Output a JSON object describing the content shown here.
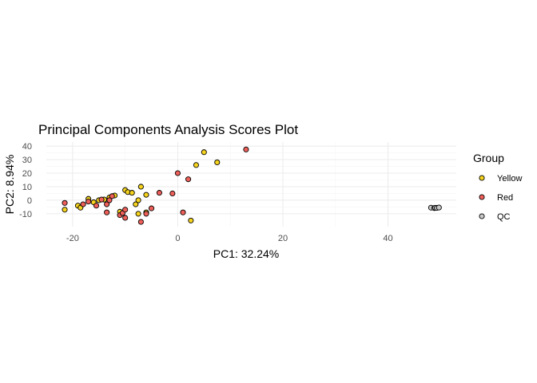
{
  "chart_data": {
    "type": "scatter",
    "title": "Principal Components Analysis Scores Plot",
    "xlabel": "PC1: 32.24%",
    "ylabel": "PC2: 8.94%",
    "xlim": [
      -25,
      53
    ],
    "ylim": [
      -19.5,
      43
    ],
    "xticks": [
      -20,
      0,
      20,
      40
    ],
    "xtick_labels": [
      "-20",
      "0",
      "20",
      "40"
    ],
    "yticks": [
      -10,
      0,
      10,
      20,
      30,
      40
    ],
    "ytick_labels": [
      "-10",
      "0",
      "10",
      "20",
      "30",
      "40"
    ],
    "grid": true,
    "legend": {
      "title": "Group",
      "position": "right"
    },
    "series": [
      {
        "name": "Yellow",
        "color": "#F5D31E",
        "points": [
          [
            -21.5,
            -7
          ],
          [
            -19,
            -4
          ],
          [
            -18.5,
            -5.5
          ],
          [
            -17,
            1
          ],
          [
            -16,
            -1.5
          ],
          [
            -15,
            0
          ],
          [
            -14,
            0.5
          ],
          [
            -13,
            2
          ],
          [
            -12,
            3.5
          ],
          [
            -11,
            -8.5
          ],
          [
            -10,
            7.5
          ],
          [
            -9.5,
            6
          ],
          [
            -8.7,
            5.5
          ],
          [
            -8,
            -3
          ],
          [
            -7.5,
            0
          ],
          [
            -7,
            10
          ],
          [
            -6,
            4
          ],
          [
            -7.5,
            -10
          ],
          [
            -6,
            -9
          ],
          [
            3.5,
            26
          ],
          [
            5,
            35.5
          ],
          [
            7.5,
            28
          ],
          [
            2.5,
            -15
          ]
        ]
      },
      {
        "name": "Red",
        "color": "#F0605A",
        "points": [
          [
            -21.5,
            -2
          ],
          [
            -18,
            -3
          ],
          [
            -17,
            -1
          ],
          [
            -15.5,
            -4
          ],
          [
            -14.5,
            0.5
          ],
          [
            -13.5,
            -3
          ],
          [
            -13,
            0
          ],
          [
            -13.5,
            -9
          ],
          [
            -12.5,
            3
          ],
          [
            -11,
            -11
          ],
          [
            -10.5,
            -9.5
          ],
          [
            -10,
            -13
          ],
          [
            -10,
            -7
          ],
          [
            -7,
            -16
          ],
          [
            -6,
            -10
          ],
          [
            -5,
            -6
          ],
          [
            -3.5,
            5.5
          ],
          [
            -1,
            5
          ],
          [
            0,
            20
          ],
          [
            2,
            15.5
          ],
          [
            1,
            -9
          ],
          [
            13,
            37.5
          ]
        ]
      },
      {
        "name": "QC",
        "color": "#C8C8C8",
        "points": [
          [
            48.2,
            -5.5
          ],
          [
            48.8,
            -5.8
          ],
          [
            49,
            -5.6
          ],
          [
            49.3,
            -5.7
          ],
          [
            49.7,
            -5.4
          ]
        ]
      }
    ]
  }
}
